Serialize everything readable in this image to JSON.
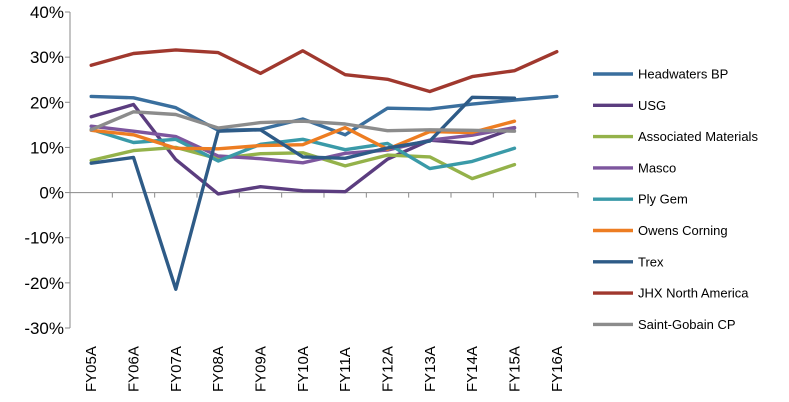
{
  "chart_data": {
    "type": "line",
    "title": "",
    "xlabel": "",
    "ylabel": "",
    "categories": [
      "FY05A",
      "FY06A",
      "FY07A",
      "FY08A",
      "FY09A",
      "FY10A",
      "FY11A",
      "FY12A",
      "FY13A",
      "FY14A",
      "FY15A",
      "FY16A"
    ],
    "yticks": [
      "-30%",
      "-20%",
      "-10%",
      "0%",
      "10%",
      "20%",
      "30%",
      "40%"
    ],
    "ylim": [
      -30,
      40
    ],
    "y_unit": "%",
    "grid": false,
    "legend_position": "right",
    "series": [
      {
        "name": "Headwaters BP",
        "color": "#3a6f9e",
        "values": [
          21.3,
          21.0,
          18.8,
          13.8,
          14.0,
          16.3,
          12.8,
          18.7,
          18.5,
          19.6,
          20.5,
          21.3
        ]
      },
      {
        "name": "USG",
        "color": "#5b3d7f",
        "values": [
          16.8,
          19.5,
          7.3,
          -0.3,
          1.3,
          0.4,
          0.2,
          7.4,
          11.6,
          10.9,
          14.3,
          null
        ]
      },
      {
        "name": "Associated Materials",
        "color": "#94b24a",
        "values": [
          7.1,
          9.3,
          10.0,
          7.5,
          8.6,
          8.8,
          5.9,
          8.3,
          7.9,
          3.1,
          6.2,
          null
        ]
      },
      {
        "name": "Masco",
        "color": "#7d569e",
        "values": [
          14.7,
          13.6,
          12.4,
          8.1,
          7.5,
          6.6,
          8.7,
          9.4,
          11.6,
          12.7,
          14.4,
          null
        ]
      },
      {
        "name": "Ply Gem",
        "color": "#3a9aa8",
        "values": [
          14.0,
          11.1,
          11.8,
          7.0,
          10.7,
          11.8,
          9.5,
          10.9,
          5.3,
          6.9,
          9.8,
          null
        ]
      },
      {
        "name": "Owens Corning",
        "color": "#ed7d22",
        "values": [
          13.8,
          12.8,
          9.8,
          9.7,
          10.4,
          10.6,
          14.4,
          9.6,
          13.5,
          13.3,
          15.8,
          null
        ]
      },
      {
        "name": "Trex",
        "color": "#2e5b87",
        "values": [
          6.5,
          7.8,
          -21.4,
          13.6,
          13.9,
          7.9,
          7.6,
          9.9,
          11.4,
          21.1,
          20.9,
          null
        ]
      },
      {
        "name": "JHX North America",
        "color": "#a0382e",
        "values": [
          28.2,
          30.8,
          31.6,
          31.0,
          26.4,
          31.4,
          26.1,
          25.1,
          22.4,
          25.7,
          27.0,
          31.2
        ]
      },
      {
        "name": "Saint-Gobain CP",
        "color": "#8c8c8c",
        "values": [
          13.9,
          17.9,
          17.3,
          14.3,
          15.5,
          15.8,
          15.2,
          13.7,
          13.9,
          13.8,
          13.6,
          null
        ]
      }
    ]
  }
}
